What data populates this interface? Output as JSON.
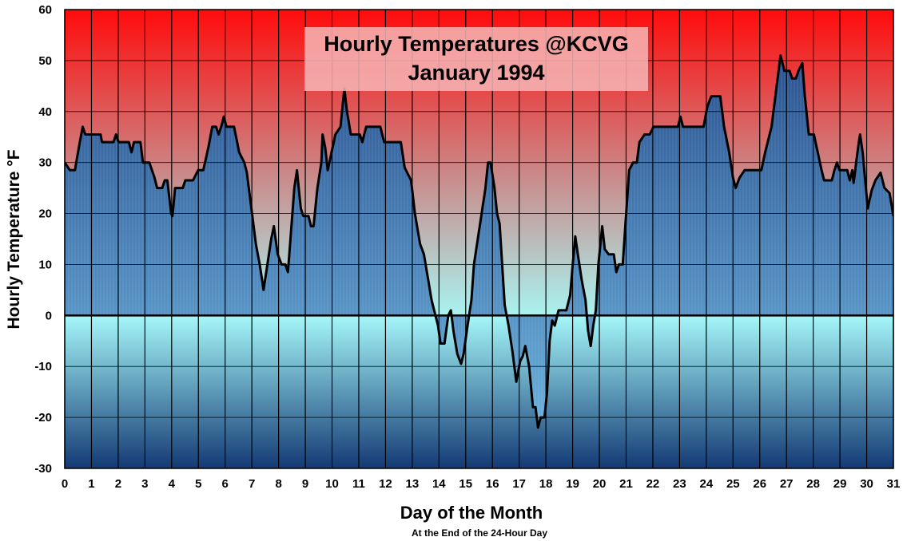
{
  "chart_data": {
    "type": "area",
    "title": "Hourly Temperatures @KCVG",
    "subtitle": "January 1994",
    "xlabel": "Day of the Month",
    "xlabel_note": "At the End of the 24-Hour Day",
    "ylabel": "Hourly Temperature °F",
    "xlim": [
      0,
      31
    ],
    "ylim": [
      -30,
      60
    ],
    "x_ticks": [
      0,
      1,
      2,
      3,
      4,
      5,
      6,
      7,
      8,
      9,
      10,
      11,
      12,
      13,
      14,
      15,
      16,
      17,
      18,
      19,
      20,
      21,
      22,
      23,
      24,
      25,
      26,
      27,
      28,
      29,
      30,
      31
    ],
    "y_ticks": [
      -30,
      -20,
      -10,
      0,
      10,
      20,
      30,
      40,
      50,
      60
    ],
    "grid": true,
    "colors": {
      "above_top": "#ff0b0b",
      "above_mid": "#c98b8b",
      "above_zero": "#a9f3f0",
      "below_zero": "#a5f7f9",
      "below_bottom": "#143a74",
      "fill_top": "#2a5290",
      "fill_bottom": "#6ab0dc",
      "line": "#000000",
      "title_box": "#f6b6b6"
    },
    "series": [
      {
        "points": [
          [
            0,
            30
          ],
          [
            0.2,
            28.5
          ],
          [
            0.4,
            28.5
          ],
          [
            0.55,
            33
          ],
          [
            0.7,
            37
          ],
          [
            0.8,
            35.5
          ],
          [
            1.4,
            35.5
          ],
          [
            1.45,
            34
          ],
          [
            1.9,
            34
          ],
          [
            2.0,
            35.5
          ],
          [
            2.1,
            34
          ],
          [
            2.5,
            34
          ],
          [
            2.6,
            32
          ],
          [
            2.7,
            34
          ],
          [
            2.95,
            34
          ],
          [
            3.05,
            30
          ],
          [
            3.3,
            30
          ],
          [
            3.5,
            27
          ],
          [
            3.6,
            25
          ],
          [
            3.8,
            25
          ],
          [
            3.9,
            26.5
          ],
          [
            4.0,
            26.5
          ],
          [
            4.15,
            20
          ],
          [
            4.2,
            19.5
          ],
          [
            4.3,
            25
          ],
          [
            4.6,
            25
          ],
          [
            4.7,
            26.5
          ],
          [
            5.0,
            26.5
          ],
          [
            5.2,
            28.5
          ],
          [
            5.4,
            28.5
          ],
          [
            5.6,
            33
          ],
          [
            5.75,
            37
          ],
          [
            5.9,
            37
          ],
          [
            6.0,
            35.5
          ],
          [
            6.1,
            37
          ],
          [
            6.2,
            39
          ],
          [
            6.3,
            37
          ],
          [
            6.6,
            37
          ],
          [
            6.8,
            32
          ],
          [
            7.0,
            30
          ],
          [
            7.1,
            28
          ],
          [
            7.3,
            20
          ],
          [
            7.45,
            14
          ],
          [
            7.6,
            10
          ],
          [
            7.75,
            5
          ],
          [
            7.9,
            10
          ],
          [
            8.05,
            15
          ],
          [
            8.15,
            17.5
          ],
          [
            8.3,
            12
          ],
          [
            8.45,
            10
          ],
          [
            8.6,
            10
          ],
          [
            8.7,
            8.5
          ],
          [
            8.8,
            15
          ],
          [
            8.95,
            25
          ],
          [
            9.05,
            28.5
          ],
          [
            9.2,
            21
          ],
          [
            9.3,
            19.5
          ],
          [
            9.5,
            19.5
          ],
          [
            9.6,
            17.5
          ],
          [
            9.7,
            17.5
          ],
          [
            9.85,
            25
          ],
          [
            10.0,
            30
          ],
          [
            10.05,
            35.5
          ],
          [
            10.15,
            33
          ],
          [
            10.25,
            28.5
          ],
          [
            10.4,
            32
          ],
          [
            10.55,
            35.5
          ],
          [
            10.75,
            37
          ],
          [
            10.9,
            44.5
          ],
          [
            11.0,
            40
          ],
          [
            11.15,
            35.5
          ],
          [
            11.5,
            35.5
          ],
          [
            11.6,
            34
          ],
          [
            11.75,
            37
          ],
          [
            12.3,
            37
          ],
          [
            12.45,
            34
          ],
          [
            13.1,
            34
          ],
          [
            13.25,
            29
          ],
          [
            13.5,
            26.5
          ],
          [
            13.65,
            20
          ],
          [
            13.85,
            14
          ],
          [
            14.0,
            12
          ],
          [
            14.2,
            6
          ],
          [
            14.3,
            3
          ],
          [
            14.45,
            0
          ],
          [
            14.55,
            -2
          ],
          [
            14.65,
            -5.5
          ],
          [
            14.8,
            -5.5
          ],
          [
            14.95,
            0
          ],
          [
            15.05,
            1
          ],
          [
            15.15,
            -3
          ],
          [
            15.3,
            -7.5
          ],
          [
            15.45,
            -9.5
          ],
          [
            15.55,
            -7.5
          ],
          [
            15.7,
            -2
          ],
          [
            15.85,
            3
          ],
          [
            15.95,
            10
          ],
          [
            16.1,
            15
          ],
          [
            16.25,
            20
          ],
          [
            16.4,
            25
          ],
          [
            16.5,
            30
          ],
          [
            16.6,
            30
          ],
          [
            16.75,
            25
          ],
          [
            16.85,
            20
          ],
          [
            16.95,
            18
          ],
          [
            17.05,
            10
          ],
          [
            17.15,
            2
          ],
          [
            17.3,
            -2
          ],
          [
            17.45,
            -7
          ],
          [
            17.6,
            -13
          ],
          [
            17.75,
            -9
          ],
          [
            17.85,
            -8
          ],
          [
            17.95,
            -6
          ],
          [
            18.1,
            -10
          ],
          [
            18.25,
            -18
          ],
          [
            18.35,
            -18
          ],
          [
            18.45,
            -22
          ],
          [
            18.55,
            -20
          ],
          [
            18.7,
            -20
          ],
          [
            18.8,
            -15
          ],
          [
            18.9,
            -5
          ],
          [
            19.0,
            -1
          ],
          [
            19.1,
            -2
          ],
          [
            19.25,
            1
          ],
          [
            19.55,
            1
          ],
          [
            19.7,
            4
          ],
          [
            19.8,
            10
          ],
          [
            19.9,
            15.5
          ],
          [
            20.0,
            12
          ],
          [
            20.15,
            7
          ],
          [
            20.3,
            3
          ],
          [
            20.4,
            -3
          ],
          [
            20.5,
            -6
          ],
          [
            20.6,
            -2
          ],
          [
            20.7,
            1
          ],
          [
            20.8,
            10
          ],
          [
            20.95,
            17.5
          ],
          [
            21.05,
            13
          ],
          [
            21.2,
            12
          ],
          [
            21.4,
            12
          ],
          [
            21.5,
            8.5
          ],
          [
            21.6,
            10
          ],
          [
            21.75,
            10
          ],
          [
            21.85,
            17.5
          ],
          [
            22.0,
            28.5
          ],
          [
            22.15,
            30
          ],
          [
            22.3,
            30
          ],
          [
            22.4,
            34
          ],
          [
            22.6,
            35.5
          ],
          [
            22.8,
            35.5
          ],
          [
            22.95,
            37
          ],
          [
            23.9,
            37
          ],
          [
            24.0,
            39
          ],
          [
            24.1,
            37
          ],
          [
            24.9,
            37
          ],
          [
            25.05,
            41
          ],
          [
            25.2,
            43
          ],
          [
            25.55,
            43
          ],
          [
            25.7,
            37
          ],
          [
            25.9,
            32
          ],
          [
            26.05,
            27
          ],
          [
            26.15,
            25
          ],
          [
            26.3,
            27
          ],
          [
            26.5,
            28.5
          ],
          [
            27.15,
            28.5
          ],
          [
            27.3,
            32
          ],
          [
            27.55,
            37
          ],
          [
            27.7,
            43
          ],
          [
            27.9,
            51
          ],
          [
            28.05,
            48
          ],
          [
            28.25,
            48
          ],
          [
            28.35,
            46.5
          ],
          [
            28.5,
            46.5
          ],
          [
            28.6,
            48
          ],
          [
            28.75,
            49.5
          ],
          [
            28.85,
            43
          ],
          [
            29.0,
            35.5
          ],
          [
            29.2,
            35.5
          ],
          [
            29.35,
            32
          ],
          [
            29.5,
            28.5
          ],
          [
            29.6,
            26.5
          ],
          [
            29.9,
            26.5
          ],
          [
            30.0,
            28.5
          ],
          [
            30.1,
            30
          ],
          [
            30.2,
            28.5
          ],
          [
            30.5,
            28.5
          ],
          [
            30.6,
            26.5
          ],
          [
            30.7,
            28.5
          ],
          [
            30.75,
            26
          ],
          [
            30.85,
            30
          ],
          [
            30.95,
            34
          ],
          [
            31.0,
            35.5
          ],
          [
            31.1,
            32
          ],
          [
            31.2,
            26.5
          ],
          [
            31.3,
            21
          ],
          [
            31.45,
            24.5
          ],
          [
            31.6,
            26.5
          ],
          [
            31.8,
            28
          ],
          [
            31.95,
            25
          ],
          [
            32.15,
            24
          ],
          [
            32.3,
            19.5
          ]
        ]
      }
    ]
  }
}
